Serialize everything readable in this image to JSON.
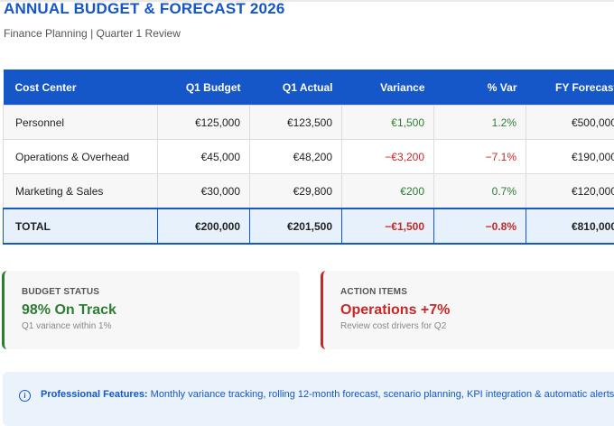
{
  "header": {
    "title": "ANNUAL BUDGET & FORECAST 2026",
    "subtitle": "Finance Planning | Quarter 1 Review"
  },
  "table": {
    "columns": [
      "Cost Center",
      "Q1 Budget",
      "Q1 Actual",
      "Variance",
      "% Var",
      "FY Forecast"
    ],
    "rows": [
      {
        "center": "Personnel",
        "budget": "€125,000",
        "actual": "€123,500",
        "variance": "€1,500",
        "pct": "1.2%",
        "forecast": "€500,000"
      },
      {
        "center": "Operations & Overhead",
        "budget": "€45,000",
        "actual": "€48,200",
        "variance": "−€3,200",
        "pct": "−7.1%",
        "forecast": "€190,000"
      },
      {
        "center": "Marketing & Sales",
        "budget": "€30,000",
        "actual": "€29,800",
        "variance": "€200",
        "pct": "0.7%",
        "forecast": "€120,000"
      }
    ],
    "total": {
      "center": "TOTAL",
      "budget": "€200,000",
      "actual": "€201,500",
      "variance": "−€1,500",
      "pct": "−0.8%",
      "forecast": "€810,000"
    }
  },
  "cards": {
    "budget_status": {
      "label": "BUDGET STATUS",
      "value": "98% On Track",
      "note": "Q1 variance within 1%",
      "color": "#2e7d32"
    },
    "action_items": {
      "label": "ACTION ITEMS",
      "value": "Operations +7%",
      "note": "Review cost drivers for Q2",
      "color": "#c62828"
    }
  },
  "info": {
    "icon": "info-icon",
    "heading": "Professional Features:",
    "text": " Monthly variance tracking, rolling 12-month forecast, scenario planning, KPI integration & automatic alerts"
  },
  "colors": {
    "accent": "#1556c8",
    "positive": "#2e7d32",
    "negative": "#c62828"
  }
}
